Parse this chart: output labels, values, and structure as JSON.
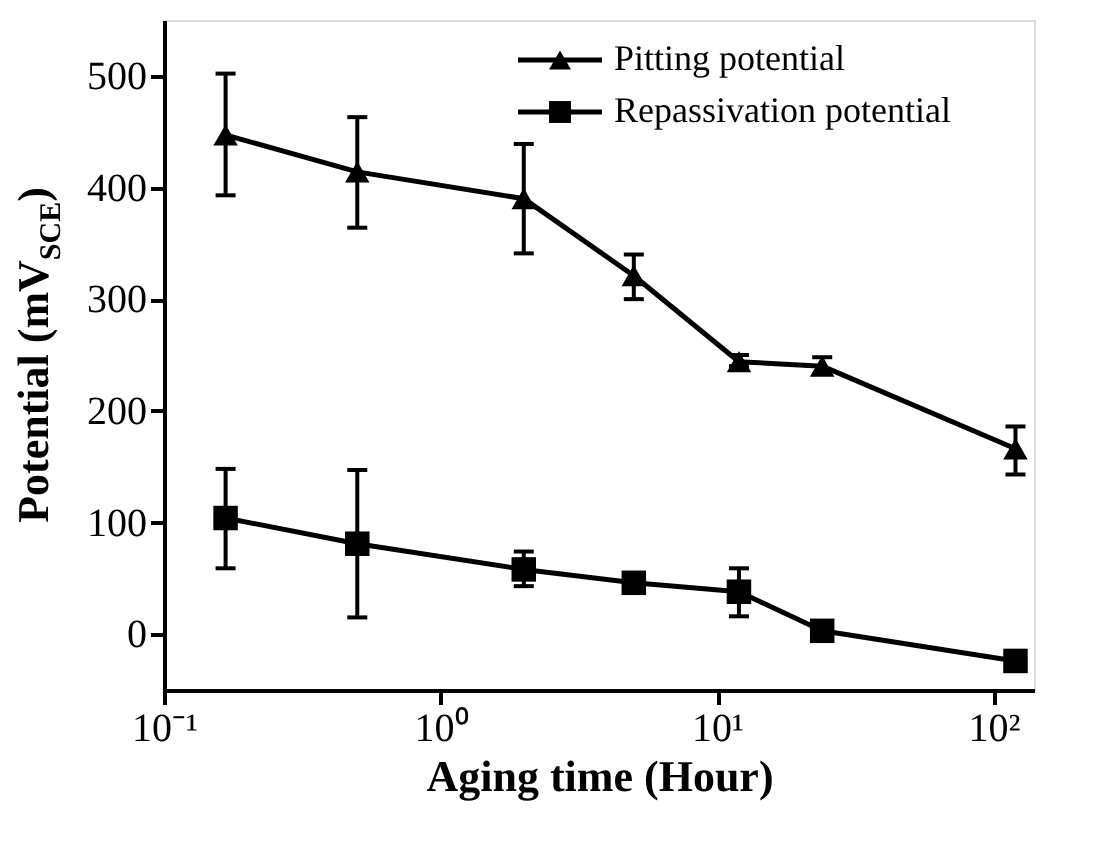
{
  "chart_data": {
    "type": "line",
    "xlabel": "Aging time (Hour)",
    "ylabel": "Potential (mV$_{SCE}$)",
    "x": [
      0.167,
      0.5,
      2,
      5,
      12,
      24,
      120
    ],
    "series": [
      {
        "name": "Pitting potential",
        "color": "#000000",
        "marker": "triangle",
        "values": [
          447,
          414,
          390,
          321,
          244,
          240,
          166
        ],
        "errors": [
          [
            393,
            502
          ],
          [
            364,
            463
          ],
          [
            341,
            439
          ],
          [
            300,
            340
          ],
          [
            240,
            250
          ],
          [
            233,
            248
          ],
          [
            143,
            186
          ]
        ]
      },
      {
        "name": "Repassivation potential",
        "color": "#000000",
        "marker": "square",
        "values": [
          104,
          81,
          58,
          46,
          38,
          3,
          -24
        ],
        "errors": [
          [
            59,
            148
          ],
          [
            15,
            147
          ],
          [
            43,
            74
          ],
          [
            40,
            53
          ],
          [
            16,
            59
          ],
          [
            -3,
            9
          ],
          [
            -32,
            -15
          ]
        ]
      }
    ],
    "log": "x",
    "xlim": [
      0.1,
      140
    ],
    "ylim": [
      -50,
      550
    ],
    "xticks": [
      {
        "value": 0.1,
        "label": "10⁻¹"
      },
      {
        "value": 1,
        "label": "10⁰"
      },
      {
        "value": 10,
        "label": "10¹"
      },
      {
        "value": 100,
        "label": "10²"
      }
    ],
    "yticks": [
      0,
      100,
      200,
      300,
      400,
      500
    ],
    "legend": "top right",
    "grid": false,
    "line_style": "solid"
  }
}
